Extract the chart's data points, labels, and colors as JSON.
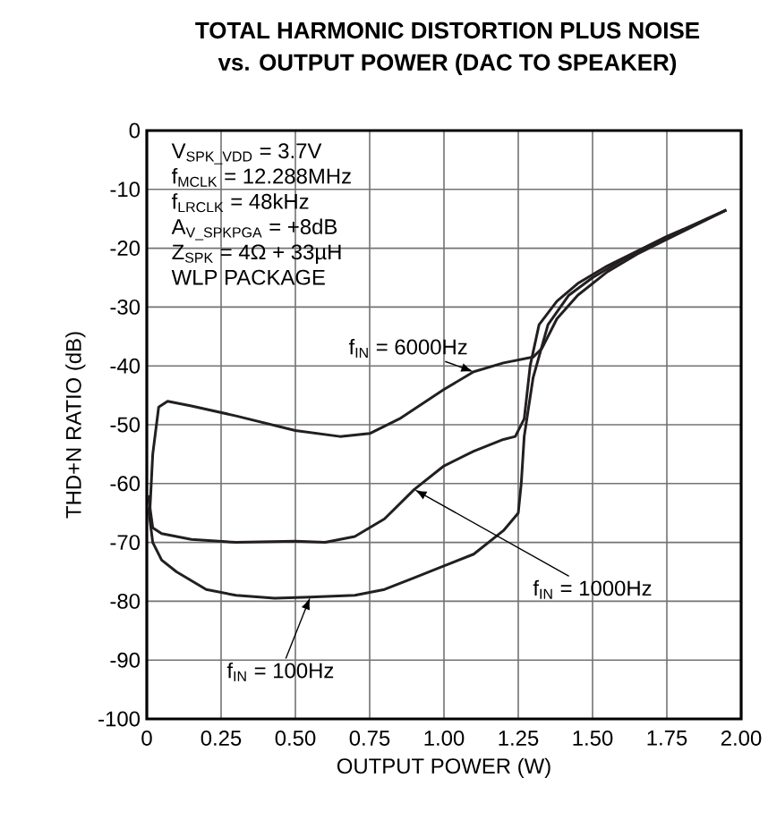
{
  "chart_data": {
    "type": "line",
    "title": "TOTAL HARMONIC DISTORTION PLUS NOISE",
    "subtitle": "vs. OUTPUT POWER (DAC TO SPEAKER)",
    "xlabel": "OUTPUT POWER (W)",
    "ylabel": "THD+N RATIO (dB)",
    "annotations": [
      "V$_{SPK_VDD}$ = 3.7V",
      "f$_{MCLK}$ = 12.288MHz",
      "f$_{LRCLK}$ = 48kHz",
      "A$_{V_SPKPGA}$ = +8dB",
      "Z$_{SPK}$ = 4Ω + 33µH",
      "WLP PACKAGE"
    ],
    "xlim": [
      0,
      2
    ],
    "ylim": [
      -100,
      0
    ],
    "xticks": [
      0,
      {
        "value": 0.25,
        "label": "0.25"
      },
      {
        "value": 0.5,
        "label": "0.50"
      },
      {
        "value": 0.75,
        "label": "0.75"
      },
      {
        "value": 1,
        "label": "1.00"
      },
      {
        "value": 1.25,
        "label": "1.25"
      },
      {
        "value": 1.5,
        "label": "1.50"
      },
      {
        "value": 1.75,
        "label": "1.75"
      },
      {
        "value": 2,
        "label": "2.00"
      }
    ],
    "yticks": [
      -100,
      -90,
      -80,
      -70,
      -60,
      -50,
      -40,
      -30,
      -20,
      -10,
      0
    ],
    "grid": true,
    "legend": false,
    "line_style": "solid",
    "series": [
      {
        "name": "f$_{IN}$ = 6000Hz",
        "color": "#231f20",
        "x": [
          0.01,
          0.02,
          0.04,
          0.07,
          0.15,
          0.3,
          0.5,
          0.65,
          0.75,
          0.85,
          1.0,
          1.1,
          1.2,
          1.3,
          1.33,
          1.38,
          1.45,
          1.55,
          1.65,
          1.75,
          1.85,
          1.95
        ],
        "values": [
          -65,
          -55,
          -47,
          -46,
          -46.8,
          -48.5,
          -51,
          -52,
          -51.5,
          -49,
          -44,
          -41,
          -39.5,
          -38.5,
          -37,
          -32,
          -28,
          -24,
          -21,
          -18.5,
          -16,
          -13.5
        ]
      },
      {
        "name": "f$_{IN}$ = 1000Hz",
        "color": "#231f20",
        "x": [
          0.005,
          0.02,
          0.05,
          0.15,
          0.3,
          0.5,
          0.6,
          0.7,
          0.8,
          0.9,
          1.0,
          1.1,
          1.2,
          1.24,
          1.27,
          1.29,
          1.32,
          1.38,
          1.45,
          1.55,
          1.65,
          1.75,
          1.85,
          1.95
        ],
        "values": [
          -62,
          -67.5,
          -68.5,
          -69.5,
          -70,
          -69.8,
          -70,
          -69,
          -66,
          -61,
          -57,
          -54.5,
          -52.5,
          -52,
          -49,
          -40,
          -33,
          -29,
          -26,
          -23,
          -20.5,
          -18,
          -15.8,
          -13.5
        ]
      },
      {
        "name": "f$_{IN}$ = 100Hz",
        "color": "#231f20",
        "x": [
          0.005,
          0.02,
          0.05,
          0.1,
          0.2,
          0.3,
          0.43,
          0.55,
          0.7,
          0.8,
          0.9,
          1.0,
          1.1,
          1.2,
          1.25,
          1.26,
          1.27,
          1.3,
          1.35,
          1.42,
          1.5,
          1.6,
          1.7,
          1.8,
          1.95
        ],
        "values": [
          -64,
          -70,
          -73,
          -75,
          -78,
          -79,
          -79.5,
          -79.3,
          -79,
          -78,
          -76,
          -74,
          -72,
          -68,
          -65,
          -60,
          -52,
          -42,
          -33,
          -28,
          -25,
          -22,
          -19.5,
          -17,
          -13.5
        ]
      }
    ]
  }
}
